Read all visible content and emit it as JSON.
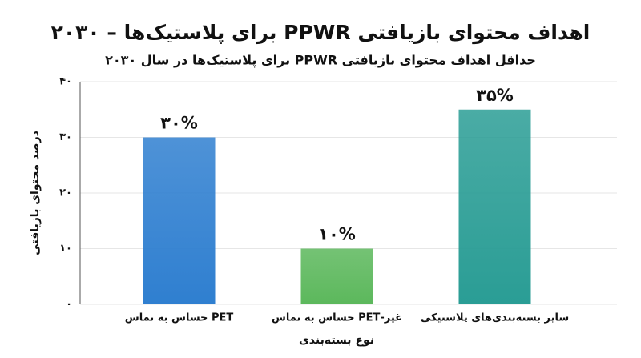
{
  "chart_data": {
    "type": "bar",
    "title": "اهداف محتوای بازیافتی PPWR برای پلاستیک‌ها – ۲۰۳۰",
    "subtitle": "حداقل اهداف محتوای بازیافتی PPWR برای پلاستیک‌ها در سال ۲۰۳۰",
    "x_label": "نوع بسته‌بندی",
    "y_label": "درصد محتوای بازیافتی",
    "categories": [
      "PET حساس به تماس",
      "غیر-PET حساس به تماس",
      "سایر بسته‌بندی‌های پلاستیکی"
    ],
    "values": [
      30,
      10,
      35
    ],
    "value_labels": [
      "۳۰%",
      "۱۰%",
      "۳۵%"
    ],
    "colors": [
      "#2f7fd0",
      "#5cb85c",
      "#2a9d95"
    ],
    "ylim": [
      0,
      40
    ],
    "yticks": [
      {
        "value": 0,
        "label": "۰"
      },
      {
        "value": 10,
        "label": "۱۰"
      },
      {
        "value": 20,
        "label": "۲۰"
      },
      {
        "value": 30,
        "label": "۳۰"
      },
      {
        "value": 40,
        "label": "۴۰"
      }
    ],
    "grid": true
  }
}
